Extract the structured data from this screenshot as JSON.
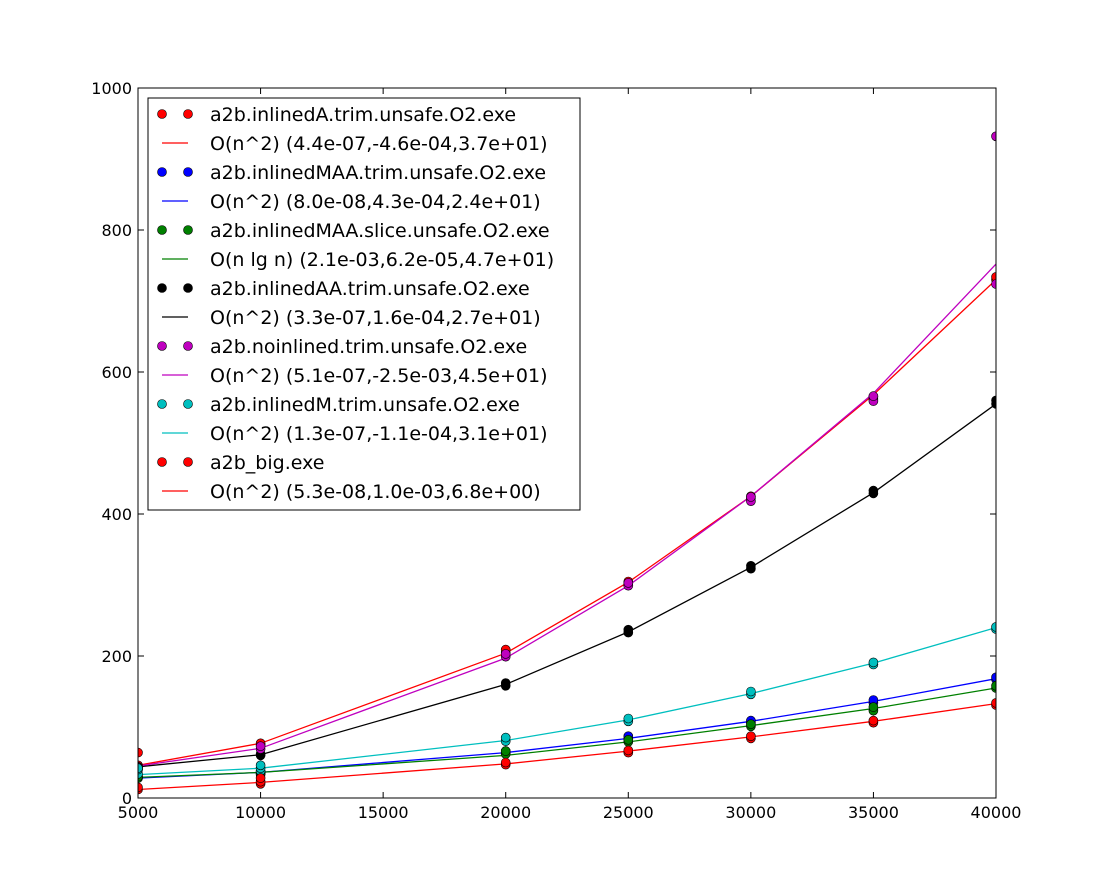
{
  "chart_data": {
    "type": "scatter",
    "title": "",
    "xlabel": "",
    "ylabel": "",
    "xlim": [
      5000,
      40000
    ],
    "ylim": [
      0,
      1000
    ],
    "xticks": [
      "5000",
      "10000",
      "15000",
      "20000",
      "25000",
      "30000",
      "35000",
      "40000"
    ],
    "yticks": [
      "0",
      "200",
      "400",
      "600",
      "800",
      "1000"
    ],
    "grid": false,
    "legend_position": "top-left",
    "x": [
      5000,
      10000,
      20000,
      25000,
      30000,
      35000,
      40000
    ],
    "series": [
      {
        "name": "a2b.inlinedA.trim.unsafe.O2.exe",
        "kind": "points",
        "color": "#ff0000",
        "points": [
          [
            5000,
            44
          ],
          [
            5000,
            46
          ],
          [
            10000,
            75
          ],
          [
            10000,
            77
          ],
          [
            20000,
            205
          ],
          [
            20000,
            209
          ],
          [
            25000,
            302
          ],
          [
            25000,
            305
          ],
          [
            30000,
            422
          ],
          [
            30000,
            425
          ],
          [
            35000,
            562
          ],
          [
            35000,
            565
          ],
          [
            40000,
            730
          ],
          [
            40000,
            734
          ]
        ]
      },
      {
        "name": "O(n^2) (4.4e-07,-4.6e-04,3.7e+01)",
        "kind": "line",
        "color": "#ff0000",
        "values": [
          46,
          77,
          204,
          304,
          425,
          568,
          730
        ]
      },
      {
        "name": "a2b.inlinedMAA.trim.unsafe.O2.exe",
        "kind": "points",
        "color": "#0000ff",
        "points": [
          [
            5000,
            28
          ],
          [
            5000,
            30
          ],
          [
            10000,
            33
          ],
          [
            10000,
            35
          ],
          [
            20000,
            63
          ],
          [
            20000,
            66
          ],
          [
            25000,
            84
          ],
          [
            25000,
            87
          ],
          [
            30000,
            106
          ],
          [
            30000,
            109
          ],
          [
            35000,
            134
          ],
          [
            35000,
            138
          ],
          [
            40000,
            167
          ],
          [
            40000,
            170
          ]
        ]
      },
      {
        "name": "O(n^2) (8.0e-08,4.3e-04,2.4e+01)",
        "kind": "line",
        "color": "#0000ff",
        "values": [
          28,
          36,
          64,
          84,
          108,
          136,
          168
        ]
      },
      {
        "name": "a2b.inlinedMAA.slice.unsafe.O2.exe",
        "kind": "points",
        "color": "#008000",
        "points": [
          [
            5000,
            28
          ],
          [
            5000,
            30
          ],
          [
            10000,
            35
          ],
          [
            10000,
            38
          ],
          [
            20000,
            62
          ],
          [
            20000,
            66
          ],
          [
            25000,
            79
          ],
          [
            25000,
            82
          ],
          [
            30000,
            101
          ],
          [
            30000,
            104
          ],
          [
            35000,
            123
          ],
          [
            35000,
            128
          ],
          [
            40000,
            155
          ],
          [
            40000,
            158
          ]
        ]
      },
      {
        "name": "O(n lg n) (2.1e-03,6.2e-05,4.7e+01)",
        "kind": "line",
        "color": "#008000",
        "values": [
          29,
          36,
          60,
          79,
          102,
          126,
          155
        ]
      },
      {
        "name": "a2b.inlinedAA.trim.unsafe.O2.exe",
        "kind": "points",
        "color": "#000000",
        "points": [
          [
            5000,
            42
          ],
          [
            5000,
            44
          ],
          [
            10000,
            60
          ],
          [
            10000,
            62
          ],
          [
            20000,
            158
          ],
          [
            20000,
            162
          ],
          [
            25000,
            233
          ],
          [
            25000,
            237
          ],
          [
            30000,
            323
          ],
          [
            30000,
            327
          ],
          [
            35000,
            429
          ],
          [
            35000,
            433
          ],
          [
            40000,
            555
          ],
          [
            40000,
            560
          ]
        ]
      },
      {
        "name": "O(n^2) (3.3e-07,1.6e-04,2.7e+01)",
        "kind": "line",
        "color": "#000000",
        "values": [
          44,
          61,
          160,
          234,
          325,
          430,
          555
        ]
      },
      {
        "name": "a2b.noinlined.trim.unsafe.O2.exe",
        "kind": "points",
        "color": "#bf00bf",
        "points": [
          [
            5000,
            40
          ],
          [
            5000,
            43
          ],
          [
            10000,
            69
          ],
          [
            10000,
            73
          ],
          [
            20000,
            199
          ],
          [
            20000,
            203
          ],
          [
            25000,
            299
          ],
          [
            25000,
            303
          ],
          [
            30000,
            418
          ],
          [
            30000,
            424
          ],
          [
            35000,
            559
          ],
          [
            35000,
            566
          ],
          [
            40000,
            724
          ],
          [
            40000,
            932
          ]
        ]
      },
      {
        "name": "O(n^2) (5.1e-07,-2.5e-03,4.5e+01)",
        "kind": "line",
        "color": "#bf00bf",
        "values": [
          45,
          70,
          197,
          299,
          425,
          570,
          752
        ]
      },
      {
        "name": "a2b.inlinedM.trim.unsafe.O2.exe",
        "kind": "points",
        "color": "#00bfbf",
        "points": [
          [
            5000,
            34
          ],
          [
            5000,
            40
          ],
          [
            5000,
            42
          ],
          [
            10000,
            38
          ],
          [
            10000,
            42
          ],
          [
            10000,
            46
          ],
          [
            20000,
            80
          ],
          [
            20000,
            85
          ],
          [
            25000,
            108
          ],
          [
            25000,
            112
          ],
          [
            30000,
            146
          ],
          [
            30000,
            150
          ],
          [
            35000,
            188
          ],
          [
            35000,
            191
          ],
          [
            40000,
            238
          ],
          [
            40000,
            241
          ]
        ]
      },
      {
        "name": "O(n^2) (1.3e-07,-1.1e-04,3.1e+01)",
        "kind": "line",
        "color": "#00bfbf",
        "values": [
          33,
          42,
          81,
          110,
          147,
          190,
          240
        ]
      },
      {
        "name": "a2b_big.exe",
        "kind": "points",
        "color": "#ff0000",
        "points": [
          [
            5000,
            12
          ],
          [
            5000,
            15
          ],
          [
            5000,
            64
          ],
          [
            10000,
            20
          ],
          [
            10000,
            23
          ],
          [
            10000,
            28
          ],
          [
            20000,
            47
          ],
          [
            20000,
            50
          ],
          [
            25000,
            64
          ],
          [
            25000,
            67
          ],
          [
            30000,
            84
          ],
          [
            30000,
            87
          ],
          [
            35000,
            106
          ],
          [
            35000,
            109
          ],
          [
            40000,
            131
          ],
          [
            40000,
            134
          ]
        ]
      },
      {
        "name": "O(n^2) (5.3e-08,1.0e-03,6.8e+00)",
        "kind": "line",
        "color": "#ff0000",
        "values": [
          12,
          22,
          48,
          66,
          86,
          108,
          133
        ]
      }
    ]
  }
}
